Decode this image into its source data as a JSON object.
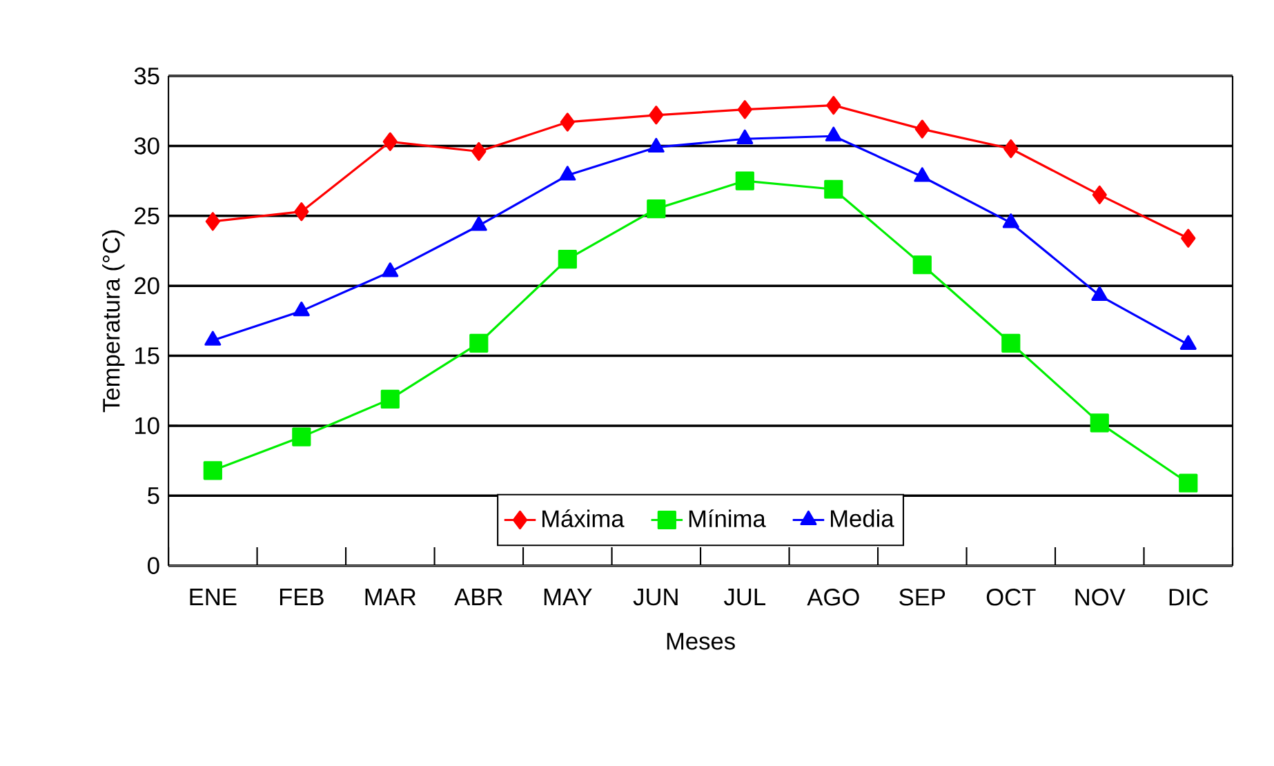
{
  "chart_data": {
    "type": "line",
    "xlabel": "Meses",
    "ylabel": "Temperatura (°C)",
    "categories": [
      "ENE",
      "FEB",
      "MAR",
      "ABR",
      "MAY",
      "JUN",
      "JUL",
      "AGO",
      "SEP",
      "OCT",
      "NOV",
      "DIC"
    ],
    "series": [
      {
        "name": "Máxima",
        "color": "#ff0000",
        "marker": "diamond",
        "values": [
          24.6,
          25.3,
          30.3,
          29.6,
          31.7,
          32.2,
          32.6,
          32.9,
          31.2,
          29.8,
          26.5,
          23.4
        ]
      },
      {
        "name": "Mínima",
        "color": "#00ee00",
        "marker": "square",
        "values": [
          6.8,
          9.2,
          11.9,
          15.9,
          21.9,
          25.5,
          27.5,
          26.9,
          21.5,
          15.9,
          10.2,
          5.9
        ]
      },
      {
        "name": "Media",
        "color": "#0000ff",
        "marker": "triangle",
        "values": [
          16.1,
          18.2,
          21.0,
          24.3,
          27.9,
          29.9,
          30.5,
          30.7,
          27.8,
          24.5,
          19.3,
          15.8
        ]
      }
    ],
    "ylim": [
      0,
      35
    ],
    "yticks": [
      0,
      5,
      10,
      15,
      20,
      25,
      30,
      35
    ],
    "grid": "y",
    "legend": "bottom"
  }
}
